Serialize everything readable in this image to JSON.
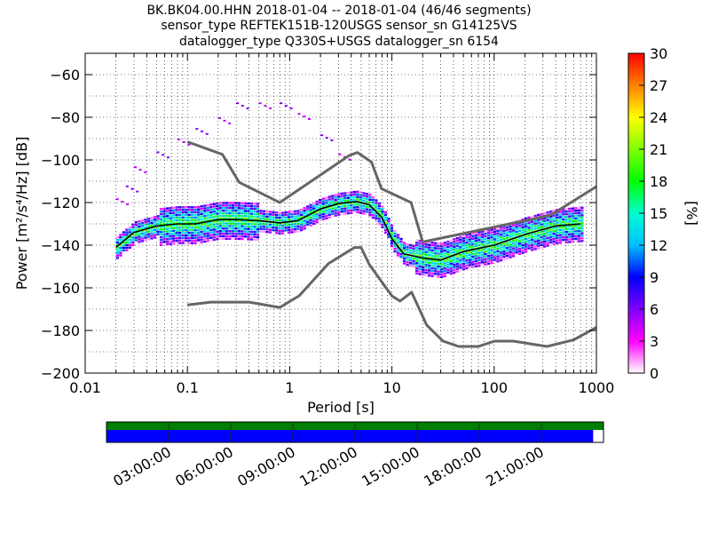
{
  "header": {
    "title_line1": "BK.BK04.00.HHN   2018-01-04 -- 2018-01-04  (46/46 segments)",
    "title_line2": "sensor_type REFTEK151B-120USGS sensor_sn G14125VS",
    "title_line3": "datalogger_type Q330S+USGS datalogger_sn 6154"
  },
  "chart_data": {
    "type": "heatmap",
    "plot": "probabilistic power spectral density",
    "xlabel": "Period [s]",
    "ylabel": "Power [m²/s⁴/Hz] [dB]",
    "x_scale": "log",
    "xlim": [
      0.01,
      1000
    ],
    "ylim": [
      -200,
      -50
    ],
    "x_ticks": [
      0.01,
      0.1,
      1,
      10,
      100,
      1000
    ],
    "x_tick_labels": [
      "0.01",
      "0.1",
      "1",
      "10",
      "100",
      "1000"
    ],
    "y_ticks": [
      -200,
      -180,
      -160,
      -140,
      -120,
      -100,
      -80,
      -60
    ],
    "y_tick_labels": [
      "−200",
      "−180",
      "−160",
      "−140",
      "−120",
      "−100",
      "−80",
      "−60"
    ],
    "grid": "dotted",
    "colorbar": {
      "label": "[%]",
      "range": [
        0,
        30
      ],
      "ticks": [
        0,
        3,
        6,
        9,
        12,
        15,
        18,
        21,
        24,
        27,
        30
      ],
      "colormap": [
        "#ffffff",
        "#ff00ff",
        "#8000ff",
        "#0000ff",
        "#00bfff",
        "#00ffd0",
        "#00ff00",
        "#80ff00",
        "#ffff00",
        "#ff8000",
        "#ff0000"
      ]
    },
    "nlnm": {
      "name": "NLNM",
      "period": [
        0.1,
        0.17,
        0.4,
        0.8,
        1.24,
        2.4,
        4.3,
        5.0,
        6.0,
        10.0,
        12.0,
        15.6,
        21.9,
        31.6,
        45.0,
        70.0,
        101.0,
        154.0,
        328.0,
        600.0,
        1000.0
      ],
      "power": [
        -168.0,
        -166.7,
        -166.7,
        -169.2,
        -163.7,
        -148.6,
        -141.1,
        -141.1,
        -149.0,
        -163.8,
        -166.2,
        -162.1,
        -177.5,
        -185.0,
        -187.5,
        -187.5,
        -185.0,
        -185.0,
        -187.5,
        -184.4,
        -178.6
      ]
    },
    "nhnm": {
      "name": "NHNM",
      "period": [
        0.1,
        0.22,
        0.32,
        0.8,
        3.8,
        4.6,
        6.3,
        7.9,
        15.4,
        20.0,
        354.8,
        1000.0
      ],
      "power": [
        -91.5,
        -97.4,
        -110.5,
        -120.0,
        -98.0,
        -96.5,
        -101.0,
        -113.5,
        -120.0,
        -138.5,
        -126.0,
        -112.5
      ]
    },
    "mode_line": {
      "name": "mode",
      "period": [
        0.02,
        0.03,
        0.05,
        0.08,
        0.12,
        0.2,
        0.3,
        0.5,
        0.8,
        1.2,
        2.0,
        3.0,
        4.5,
        6.0,
        8.0,
        10.0,
        13.0,
        16.0,
        20.0,
        30.0,
        50.0,
        100.0,
        200.0,
        400.0,
        700.0
      ],
      "power": [
        -141,
        -134,
        -131,
        -130,
        -130,
        -128,
        -128,
        -128.5,
        -129.5,
        -128.5,
        -123,
        -120.5,
        -119.5,
        -121,
        -127,
        -137,
        -144,
        -145,
        -146,
        -147,
        -143,
        -140,
        -135,
        -131,
        -130
      ]
    },
    "segment_coverage": {
      "time_tick_labels": [
        "03:00:00",
        "06:00:00",
        "09:00:00",
        "12:00:00",
        "15:00:00",
        "18:00:00",
        "21:00:00"
      ],
      "time_tick_hours": [
        3,
        6,
        9,
        12,
        15,
        18,
        21
      ],
      "span_hours": [
        0,
        24
      ],
      "data_available": [
        0,
        24
      ],
      "ppsd_used": [
        0,
        23.5
      ],
      "colors": {
        "data": "#008000",
        "ppsd": "#0000ff"
      }
    }
  }
}
